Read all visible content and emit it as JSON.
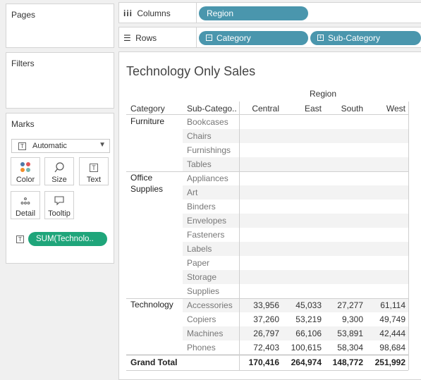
{
  "left_panel": {
    "pages_title": "Pages",
    "filters_title": "Filters",
    "marks": {
      "title": "Marks",
      "mark_type": "Automatic",
      "tiles": [
        {
          "label": "Color",
          "icon": "color-dots-icon"
        },
        {
          "label": "Size",
          "icon": "size-lasso-icon"
        },
        {
          "label": "Text",
          "icon": "text-t-icon"
        },
        {
          "label": "Detail",
          "icon": "detail-dots-icon"
        },
        {
          "label": "Tooltip",
          "icon": "tooltip-bubble-icon"
        }
      ],
      "field_pill": "SUM(Technolo..",
      "pill_color": "#1fa57a"
    }
  },
  "shelves": {
    "columns_label": "Columns",
    "rows_label": "Rows",
    "columns_pills": [
      "Region"
    ],
    "rows_pills": [
      "Category",
      "Sub-Category"
    ],
    "pill_color": "#4a96ad"
  },
  "view": {
    "title": "Technology Only Sales",
    "region_header": "Region",
    "category_header": "Category",
    "subcategory_header": "Sub-Catego..",
    "columns": [
      "Central",
      "East",
      "South",
      "West"
    ],
    "groups": [
      {
        "category": "Furniture",
        "rows": [
          {
            "sub": "Bookcases",
            "values": [
              "",
              "",
              "",
              ""
            ]
          },
          {
            "sub": "Chairs",
            "values": [
              "",
              "",
              "",
              ""
            ]
          },
          {
            "sub": "Furnishings",
            "values": [
              "",
              "",
              "",
              ""
            ]
          },
          {
            "sub": "Tables",
            "values": [
              "",
              "",
              "",
              ""
            ]
          }
        ]
      },
      {
        "category": "Office Supplies",
        "category_lines": [
          "Office",
          "Supplies"
        ],
        "rows": [
          {
            "sub": "Appliances",
            "values": [
              "",
              "",
              "",
              ""
            ]
          },
          {
            "sub": "Art",
            "values": [
              "",
              "",
              "",
              ""
            ]
          },
          {
            "sub": "Binders",
            "values": [
              "",
              "",
              "",
              ""
            ]
          },
          {
            "sub": "Envelopes",
            "values": [
              "",
              "",
              "",
              ""
            ]
          },
          {
            "sub": "Fasteners",
            "values": [
              "",
              "",
              "",
              ""
            ]
          },
          {
            "sub": "Labels",
            "values": [
              "",
              "",
              "",
              ""
            ]
          },
          {
            "sub": "Paper",
            "values": [
              "",
              "",
              "",
              ""
            ]
          },
          {
            "sub": "Storage",
            "values": [
              "",
              "",
              "",
              ""
            ]
          },
          {
            "sub": "Supplies",
            "values": [
              "",
              "",
              "",
              ""
            ]
          }
        ]
      },
      {
        "category": "Technology",
        "rows": [
          {
            "sub": "Accessories",
            "values": [
              "33,956",
              "45,033",
              "27,277",
              "61,114"
            ]
          },
          {
            "sub": "Copiers",
            "values": [
              "37,260",
              "53,219",
              "9,300",
              "49,749"
            ]
          },
          {
            "sub": "Machines",
            "values": [
              "26,797",
              "66,106",
              "53,891",
              "42,444"
            ]
          },
          {
            "sub": "Phones",
            "values": [
              "72,403",
              "100,615",
              "58,304",
              "98,684"
            ]
          }
        ]
      }
    ],
    "grand_total_label": "Grand Total",
    "grand_total_values": [
      "170,416",
      "264,974",
      "148,772",
      "251,992"
    ]
  }
}
